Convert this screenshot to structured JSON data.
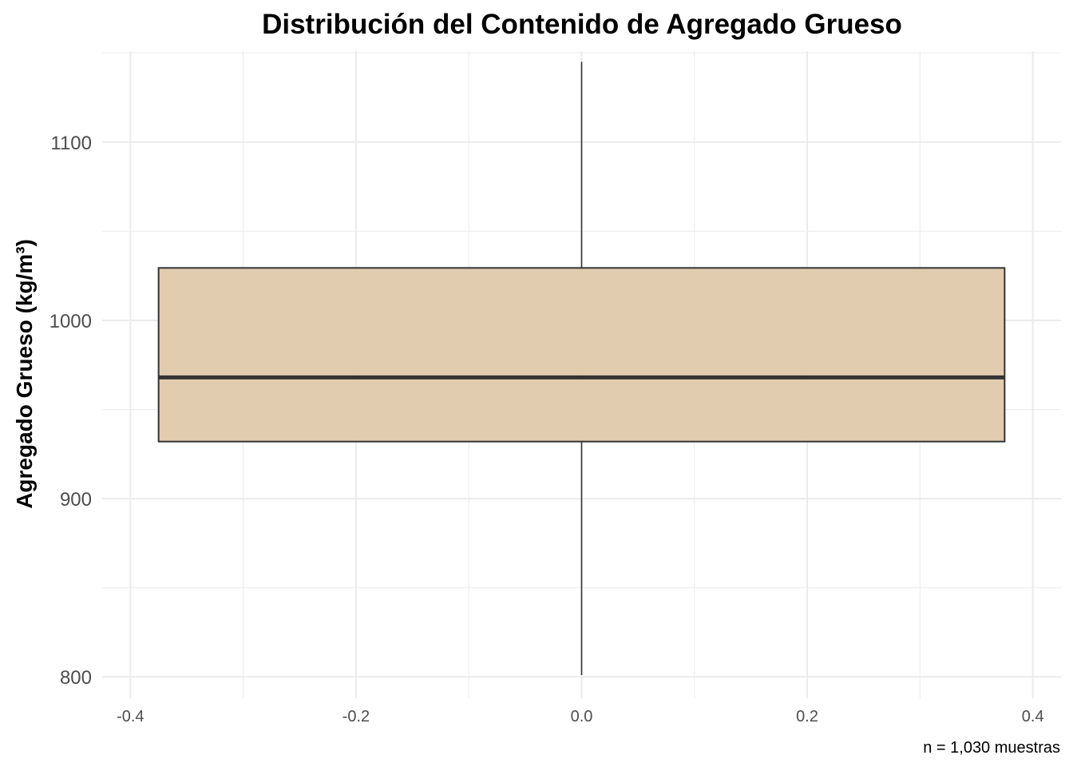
{
  "chart_data": {
    "type": "boxplot",
    "title": "Distribución del Contenido de Agregado Grueso",
    "xlabel": "",
    "ylabel": "Agregado Grueso (kg/m³)",
    "caption": "n = 1,030 muestras",
    "xlim": [
      -0.425,
      0.425
    ],
    "ylim": [
      788,
      1151
    ],
    "x_ticks": [
      -0.4,
      -0.2,
      0.0,
      0.2,
      0.4
    ],
    "x_tick_labels": [
      "-0.4",
      "-0.2",
      "0.0",
      "0.2",
      "0.4"
    ],
    "y_ticks": [
      800,
      900,
      1000,
      1100
    ],
    "y_tick_labels": [
      "800",
      "900",
      "1000",
      "1100"
    ],
    "box": {
      "x_center": 0.0,
      "x_left": -0.375,
      "x_right": 0.375,
      "min": 801,
      "q1": 932,
      "median": 968,
      "q3": 1029.4,
      "max": 1145
    },
    "grid": true,
    "fill_color": "#e0c9ab",
    "line_color": "#333333",
    "grid_color": "#ebebeb"
  }
}
